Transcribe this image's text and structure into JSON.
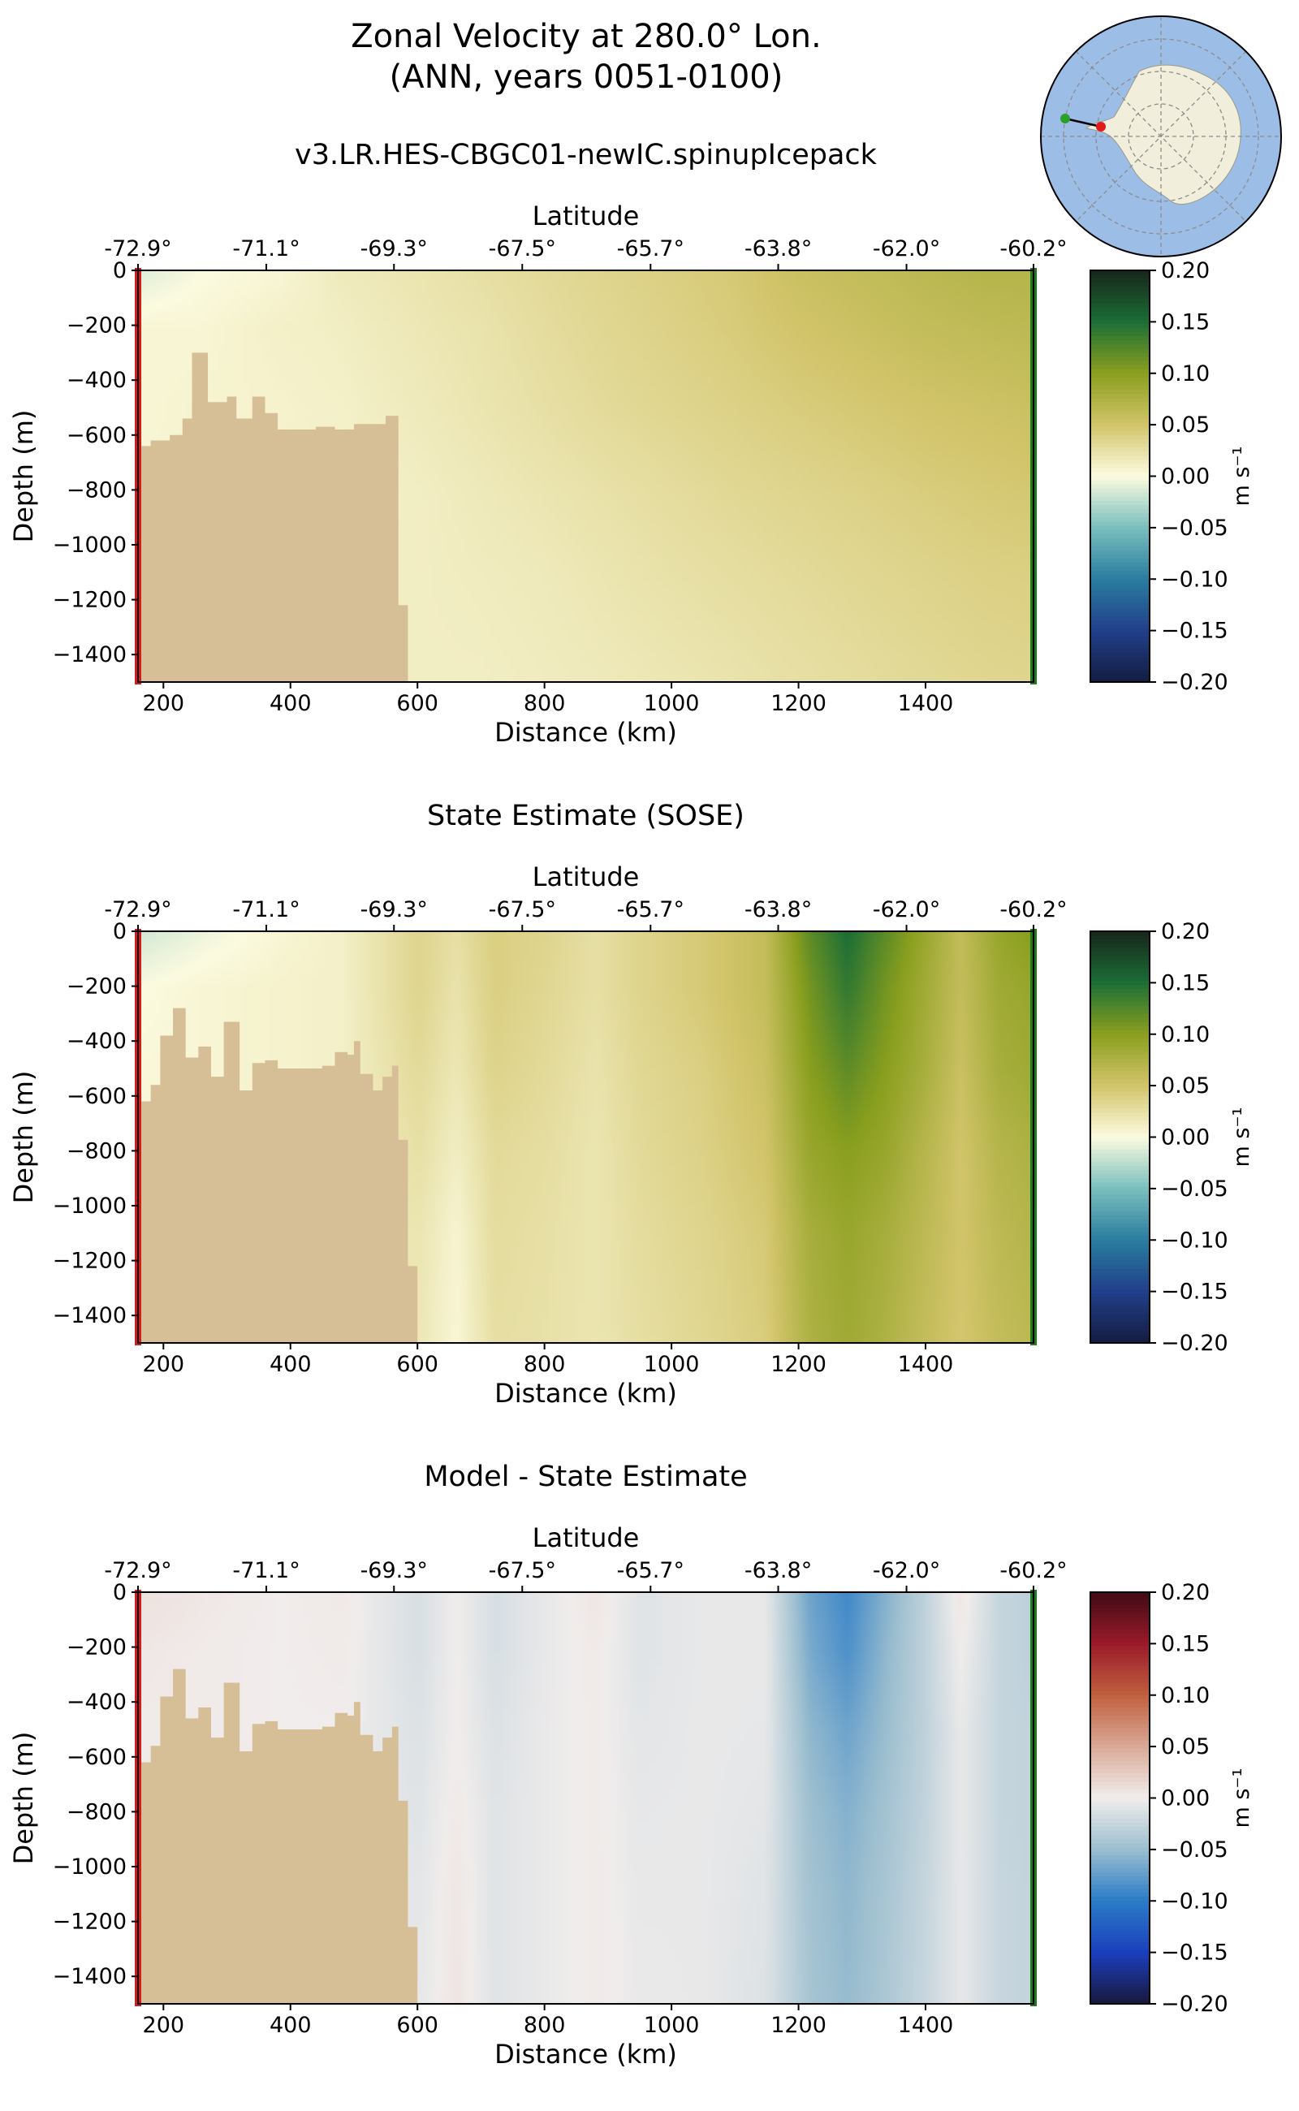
{
  "figure": {
    "title_line1": "Zonal Velocity at 280.0° Lon.",
    "title_line2": "(ANN, years 0051-0100)"
  },
  "colors": {
    "land": "#d6bf96",
    "left_bar": "#d41e1e",
    "right_bar": "#1f7a1f",
    "map_ocean": "#9cbde6",
    "map_land": "#f1eedb",
    "map_grid": "#8c8c8c",
    "map_start_point": "#2ca02c",
    "map_end_point": "#e31a1c"
  },
  "chart_data": [
    {
      "type": "heatmap",
      "title": "v3.LR.HES-CBGC01-newIC.spinupIcepack",
      "xlabel": "Distance (km)",
      "ylabel": "Depth (m)",
      "top_axis_label": "Latitude",
      "xlim": [
        160,
        1570
      ],
      "ylim": [
        -1500,
        0
      ],
      "xticks": [
        200,
        400,
        600,
        800,
        1000,
        1200,
        1400
      ],
      "yticks": [
        0,
        -200,
        -400,
        -600,
        -800,
        -1000,
        -1200,
        -1400
      ],
      "top_tick_positions": [
        160,
        362,
        563,
        765,
        967,
        1168,
        1370,
        1570
      ],
      "top_tick_labels": [
        "-72.9°",
        "-71.1°",
        "-69.3°",
        "-67.5°",
        "-65.7°",
        "-63.8°",
        "-62.0°",
        "-60.2°"
      ],
      "colormap": "delta-like diverging (navy-teal-cream-olive-green)",
      "colorbar": {
        "label": "m s⁻¹",
        "range": [
          -0.2,
          0.2
        ],
        "ticks": [
          0.2,
          0.15,
          0.1,
          0.05,
          0.0,
          -0.05,
          -0.1,
          -0.15,
          -0.2
        ],
        "tick_labels": [
          "0.20",
          "0.15",
          "0.10",
          "0.05",
          "0.00",
          "−0.05",
          "−0.10",
          "−0.15",
          "−0.20"
        ],
        "stops": [
          "#141d42",
          "#213f8a",
          "#2a7da0",
          "#7abfbd",
          "#fcfbe0",
          "#d2c46a",
          "#8a9f1e",
          "#1c6e36",
          "#17261a"
        ]
      },
      "field": {
        "x": [
          160,
          260,
          380,
          480,
          600,
          700,
          800,
          900,
          1000,
          1100,
          1200,
          1300,
          1400,
          1500,
          1570
        ],
        "depths": [
          0,
          -200,
          -500,
          -800,
          -1100,
          -1500
        ],
        "values": [
          [
            -0.01,
            0.0,
            0.005,
            0.015,
            0.02,
            0.025,
            0.03,
            0.035,
            0.04,
            0.045,
            0.055,
            0.06,
            0.065,
            0.07,
            0.07
          ],
          [
            0.005,
            0.005,
            0.01,
            0.012,
            0.018,
            0.022,
            0.028,
            0.033,
            0.038,
            0.043,
            0.05,
            0.055,
            0.06,
            0.063,
            0.065
          ],
          [
            0.005,
            0.007,
            0.008,
            0.01,
            0.015,
            0.02,
            0.025,
            0.03,
            0.034,
            0.038,
            0.042,
            0.046,
            0.05,
            0.053,
            0.055
          ],
          [
            0.005,
            0.008,
            0.009,
            0.01,
            0.012,
            0.016,
            0.02,
            0.024,
            0.028,
            0.032,
            0.035,
            0.038,
            0.042,
            0.045,
            0.047
          ],
          [
            0.006,
            0.008,
            0.01,
            0.011,
            0.012,
            0.014,
            0.016,
            0.02,
            0.024,
            0.027,
            0.03,
            0.033,
            0.036,
            0.039,
            0.04
          ],
          [
            0.008,
            0.009,
            0.01,
            0.011,
            0.012,
            0.012,
            0.014,
            0.016,
            0.019,
            0.022,
            0.025,
            0.028,
            0.031,
            0.034,
            0.035
          ]
        ]
      },
      "bathymetry": [
        [
          160,
          -640
        ],
        [
          180,
          -620
        ],
        [
          210,
          -600
        ],
        [
          230,
          -540
        ],
        [
          245,
          -300
        ],
        [
          270,
          -480
        ],
        [
          300,
          -460
        ],
        [
          315,
          -540
        ],
        [
          340,
          -460
        ],
        [
          360,
          -520
        ],
        [
          380,
          -580
        ],
        [
          440,
          -570
        ],
        [
          470,
          -580
        ],
        [
          500,
          -560
        ],
        [
          520,
          -560
        ],
        [
          550,
          -530
        ],
        [
          570,
          -1220
        ],
        [
          585,
          -1500
        ]
      ]
    },
    {
      "type": "heatmap",
      "title": "State Estimate (SOSE)",
      "xlabel": "Distance (km)",
      "ylabel": "Depth (m)",
      "top_axis_label": "Latitude",
      "xlim": [
        160,
        1570
      ],
      "ylim": [
        -1500,
        0
      ],
      "xticks": [
        200,
        400,
        600,
        800,
        1000,
        1200,
        1400
      ],
      "yticks": [
        0,
        -200,
        -400,
        -600,
        -800,
        -1000,
        -1200,
        -1400
      ],
      "top_tick_positions": [
        160,
        362,
        563,
        765,
        967,
        1168,
        1370,
        1570
      ],
      "top_tick_labels": [
        "-72.9°",
        "-71.1°",
        "-69.3°",
        "-67.5°",
        "-65.7°",
        "-63.8°",
        "-62.0°",
        "-60.2°"
      ],
      "colormap": "delta-like diverging (navy-teal-cream-olive-green)",
      "colorbar": {
        "label": "m s⁻¹",
        "range": [
          -0.2,
          0.2
        ],
        "ticks": [
          0.2,
          0.15,
          0.1,
          0.05,
          0.0,
          -0.05,
          -0.1,
          -0.15,
          -0.2
        ],
        "tick_labels": [
          "0.20",
          "0.15",
          "0.10",
          "0.05",
          "0.00",
          "−0.05",
          "−0.10",
          "−0.15",
          "−0.20"
        ],
        "stops": [
          "#141d42",
          "#213f8a",
          "#2a7da0",
          "#7abfbd",
          "#fcfbe0",
          "#d2c46a",
          "#8a9f1e",
          "#1c6e36",
          "#17261a"
        ]
      },
      "field": {
        "x": [
          160,
          260,
          380,
          480,
          600,
          660,
          720,
          800,
          880,
          950,
          1050,
          1150,
          1220,
          1280,
          1340,
          1400,
          1460,
          1520,
          1570
        ],
        "depths": [
          0,
          -200,
          -500,
          -800,
          -1100,
          -1500
        ],
        "values": [
          [
            -0.015,
            -0.005,
            0.005,
            0.01,
            0.035,
            0.025,
            0.04,
            0.035,
            0.025,
            0.035,
            0.045,
            0.06,
            0.12,
            0.15,
            0.12,
            0.09,
            0.06,
            0.09,
            0.1
          ],
          [
            0.0,
            0.005,
            0.008,
            0.01,
            0.035,
            0.022,
            0.04,
            0.033,
            0.025,
            0.035,
            0.045,
            0.06,
            0.11,
            0.14,
            0.11,
            0.085,
            0.06,
            0.085,
            0.09
          ],
          [
            0.003,
            0.005,
            0.008,
            0.01,
            0.03,
            0.018,
            0.036,
            0.03,
            0.022,
            0.032,
            0.04,
            0.055,
            0.1,
            0.12,
            0.1,
            0.08,
            0.055,
            0.08,
            0.085
          ],
          [
            0.004,
            0.005,
            0.007,
            0.01,
            0.025,
            0.012,
            0.03,
            0.027,
            0.02,
            0.03,
            0.038,
            0.05,
            0.09,
            0.1,
            0.09,
            0.07,
            0.05,
            0.07,
            0.075
          ],
          [
            0.004,
            0.005,
            0.007,
            0.01,
            0.02,
            0.006,
            0.028,
            0.025,
            0.02,
            0.028,
            0.035,
            0.045,
            0.08,
            0.09,
            0.08,
            0.065,
            0.05,
            0.065,
            0.07
          ],
          [
            0.004,
            0.005,
            0.007,
            0.01,
            0.018,
            0.004,
            0.026,
            0.024,
            0.02,
            0.026,
            0.033,
            0.042,
            0.075,
            0.085,
            0.075,
            0.06,
            0.048,
            0.06,
            0.065
          ]
        ]
      },
      "bathymetry": [
        [
          160,
          -620
        ],
        [
          180,
          -560
        ],
        [
          195,
          -380
        ],
        [
          215,
          -280
        ],
        [
          235,
          -460
        ],
        [
          255,
          -420
        ],
        [
          275,
          -530
        ],
        [
          295,
          -330
        ],
        [
          320,
          -580
        ],
        [
          340,
          -480
        ],
        [
          360,
          -470
        ],
        [
          380,
          -500
        ],
        [
          450,
          -490
        ],
        [
          470,
          -440
        ],
        [
          490,
          -450
        ],
        [
          500,
          -400
        ],
        [
          510,
          -520
        ],
        [
          530,
          -580
        ],
        [
          545,
          -530
        ],
        [
          560,
          -490
        ],
        [
          570,
          -760
        ],
        [
          585,
          -1220
        ],
        [
          600,
          -1500
        ]
      ]
    },
    {
      "type": "heatmap",
      "title": "Model - State Estimate",
      "xlabel": "Distance (km)",
      "ylabel": "Depth (m)",
      "top_axis_label": "Latitude",
      "xlim": [
        160,
        1570
      ],
      "ylim": [
        -1500,
        0
      ],
      "xticks": [
        200,
        400,
        600,
        800,
        1000,
        1200,
        1400
      ],
      "yticks": [
        0,
        -200,
        -400,
        -600,
        -800,
        -1000,
        -1200,
        -1400
      ],
      "top_tick_positions": [
        160,
        362,
        563,
        765,
        967,
        1168,
        1370,
        1570
      ],
      "top_tick_labels": [
        "-72.9°",
        "-71.1°",
        "-69.3°",
        "-67.5°",
        "-65.7°",
        "-63.8°",
        "-62.0°",
        "-60.2°"
      ],
      "colormap": "balance-like diverging (navy-blue-white-red-maroon)",
      "colorbar": {
        "label": "m s⁻¹",
        "range": [
          -0.2,
          0.2
        ],
        "ticks": [
          0.2,
          0.15,
          0.1,
          0.05,
          0.0,
          -0.05,
          -0.1,
          -0.15,
          -0.2
        ],
        "tick_labels": [
          "0.20",
          "0.15",
          "0.10",
          "0.05",
          "0.00",
          "−0.05",
          "−0.10",
          "−0.15",
          "−0.20"
        ],
        "stops": [
          "#18183e",
          "#1b3fbc",
          "#2b7cc7",
          "#9bbecf",
          "#f1edec",
          "#d9a896",
          "#c0603e",
          "#9a1a2a",
          "#3f0b16"
        ]
      },
      "field": {
        "x": [
          160,
          260,
          380,
          480,
          600,
          660,
          720,
          800,
          880,
          950,
          1050,
          1150,
          1220,
          1280,
          1340,
          1400,
          1460,
          1520,
          1570
        ],
        "depths": [
          0,
          -200,
          -500,
          -800,
          -1100,
          -1500
        ],
        "values": [
          [
            0.008,
            0.004,
            0.0,
            0.003,
            -0.015,
            0.0,
            -0.015,
            -0.005,
            0.005,
            -0.01,
            -0.005,
            -0.005,
            -0.07,
            -0.09,
            -0.06,
            -0.03,
            0.005,
            -0.025,
            -0.03
          ],
          [
            0.004,
            0.002,
            0.0,
            0.002,
            -0.015,
            0.0,
            -0.015,
            -0.005,
            0.003,
            -0.01,
            -0.005,
            -0.005,
            -0.065,
            -0.085,
            -0.055,
            -0.03,
            0.0,
            -0.025,
            -0.03
          ],
          [
            0.002,
            0.002,
            0.0,
            0.0,
            -0.012,
            0.0,
            -0.012,
            -0.004,
            0.002,
            -0.008,
            -0.005,
            -0.006,
            -0.055,
            -0.07,
            -0.05,
            -0.03,
            -0.005,
            -0.025,
            -0.028
          ],
          [
            0.0,
            0.002,
            0.002,
            0.0,
            -0.01,
            0.003,
            -0.01,
            -0.004,
            0.002,
            -0.006,
            -0.005,
            -0.008,
            -0.048,
            -0.06,
            -0.045,
            -0.028,
            -0.005,
            -0.025,
            -0.028
          ],
          [
            0.0,
            0.002,
            0.002,
            0.0,
            -0.008,
            0.005,
            -0.01,
            -0.004,
            0.002,
            -0.005,
            -0.005,
            -0.01,
            -0.045,
            -0.055,
            -0.042,
            -0.026,
            -0.006,
            -0.024,
            -0.027
          ],
          [
            0.0,
            0.002,
            0.002,
            0.0,
            -0.006,
            0.006,
            -0.01,
            -0.004,
            0.002,
            -0.004,
            -0.005,
            -0.012,
            -0.043,
            -0.052,
            -0.04,
            -0.025,
            -0.006,
            -0.024,
            -0.027
          ]
        ]
      },
      "bathymetry": [
        [
          160,
          -620
        ],
        [
          180,
          -560
        ],
        [
          195,
          -380
        ],
        [
          215,
          -280
        ],
        [
          235,
          -460
        ],
        [
          255,
          -420
        ],
        [
          275,
          -530
        ],
        [
          295,
          -330
        ],
        [
          320,
          -580
        ],
        [
          340,
          -480
        ],
        [
          360,
          -470
        ],
        [
          380,
          -500
        ],
        [
          450,
          -490
        ],
        [
          470,
          -440
        ],
        [
          490,
          -450
        ],
        [
          500,
          -400
        ],
        [
          510,
          -520
        ],
        [
          530,
          -580
        ],
        [
          545,
          -530
        ],
        [
          560,
          -490
        ],
        [
          570,
          -760
        ],
        [
          585,
          -1220
        ],
        [
          600,
          -1500
        ]
      ]
    }
  ]
}
